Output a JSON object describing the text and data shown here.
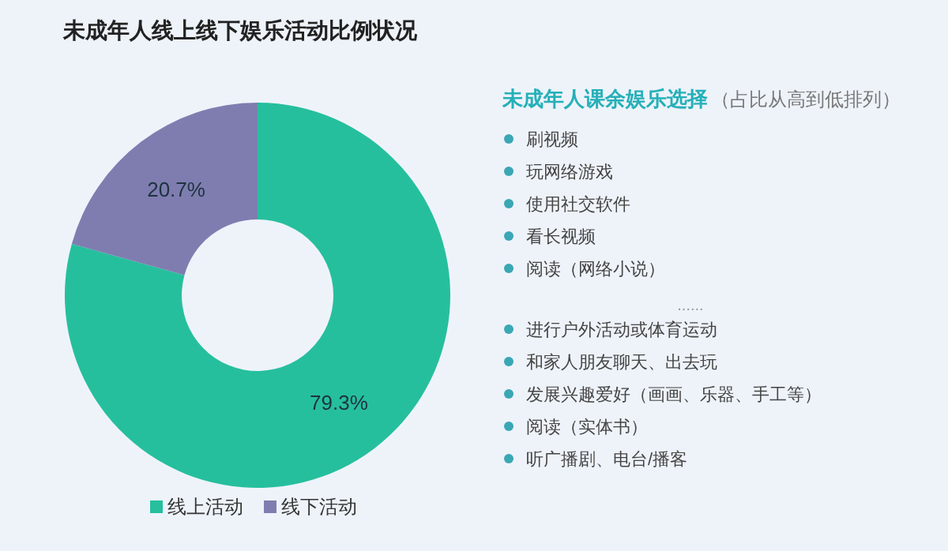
{
  "chart_data": [
    {
      "type": "donut",
      "title": "未成年人线上线下娱乐活动比例状况",
      "categories": [
        "线上活动",
        "线下活动"
      ],
      "values": [
        79.3,
        20.7
      ],
      "colors": [
        "#26bf9d",
        "#7f7db0"
      ],
      "value_labels": [
        "79.3%",
        "20.7%"
      ],
      "legend": "bottom"
    },
    {
      "type": "other",
      "title": "未成年人课余娱乐选择",
      "subtitle": "（占比从高到低排列）",
      "annotations": [
        "刷视频",
        "玩网络游戏",
        "使用社交软件",
        "看长视频",
        "阅读（网络小说）",
        "......",
        "进行户外活动或体育运动",
        "和家人朋友聊天、出去玩",
        "发展兴趣爱好（画画、乐器、手工等）",
        "阅读（实体书）",
        "听广播剧、电台/播客"
      ]
    }
  ]
}
